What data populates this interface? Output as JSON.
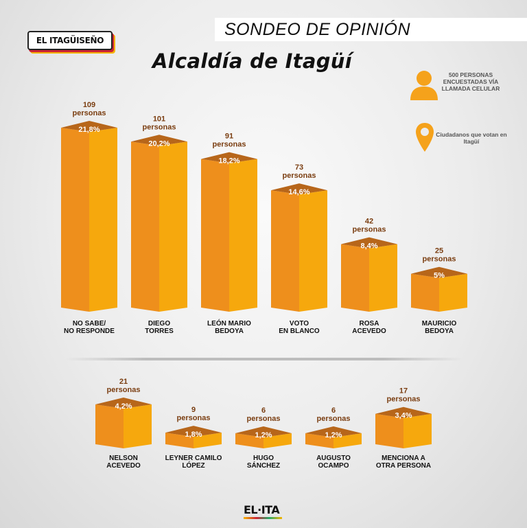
{
  "header": {
    "logo_text": "EL ITAGÜISEÑO",
    "banner": "SONDEO DE OPINIÓN",
    "title": "Alcaldía de Itagüí"
  },
  "info": {
    "surveyed": "500 PERSONAS ENCUESTADAS VÍA LLAMADA CELULAR",
    "location": "Ciudadanos que votan en Itagüí",
    "icons": [
      "person-icon",
      "map-pin-icon"
    ]
  },
  "footer": {
    "brand": "EL·ITA"
  },
  "colors": {
    "bar_front": "#ee8f1c",
    "bar_side": "#f6a80d",
    "bar_top": "#b7661a",
    "text": "#7a3d10",
    "accent": "#f5a21b"
  },
  "chart_data": [
    {
      "type": "bar",
      "categories": [
        "NO SABE/\nNO RESPONDE",
        "DIEGO\nTORRES",
        "LEÓN MARIO\nBEDOYA",
        "VOTO\nEN BLANCO",
        "ROSA\nACEVEDO",
        "MAURICIO\nBEDOYA"
      ],
      "series": [
        {
          "values": [
            21.8,
            20.2,
            18.2,
            14.6,
            8.4,
            5.0
          ]
        }
      ],
      "value_labels": [
        "21,8%",
        "20,2%",
        "18,2%",
        "14,6%",
        "8,4%",
        "5%"
      ],
      "count_labels": [
        "109\npersonas",
        "101\npersonas",
        "91\npersonas",
        "73\npersonas",
        "42\npersonas",
        "25\npersonas"
      ],
      "ylim": [
        0,
        21.8
      ]
    },
    {
      "type": "bar",
      "categories": [
        "NELSON\nACEVEDO",
        "LEYNER CAMILO\nLÓPEZ",
        "HUGO\nSÁNCHEZ",
        "AUGUSTO\nOCAMPO",
        "MENCIONA A\nOTRA PERSONA"
      ],
      "series": [
        {
          "values": [
            4.2,
            1.8,
            1.2,
            1.2,
            3.4
          ]
        }
      ],
      "value_labels": [
        "4,2%",
        "1,8%",
        "1,2%",
        "1,2%",
        "3,4%"
      ],
      "count_labels": [
        "21\npersonas",
        "9\npersonas",
        "6\npersonas",
        "6\npersonas",
        "17\npersonas"
      ],
      "ylim": [
        0,
        4.2
      ]
    }
  ]
}
